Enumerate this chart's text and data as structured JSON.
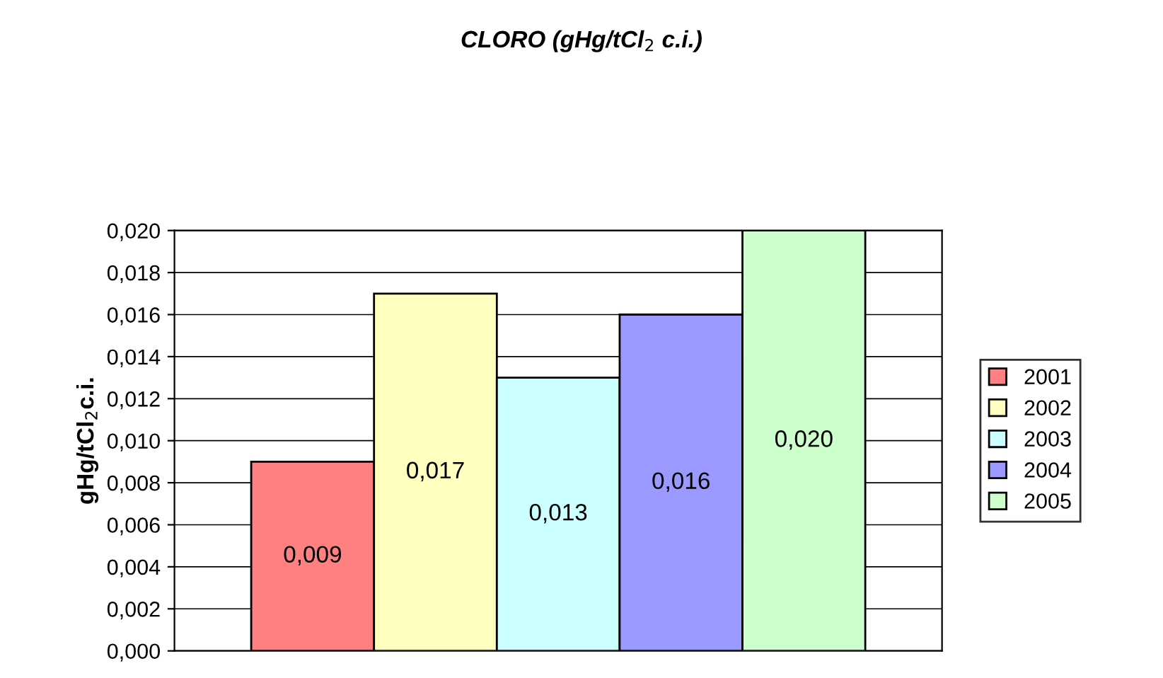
{
  "chart_data": {
    "type": "bar",
    "title": "CLORO (gHg/tCl$_{2}$ c.i.)",
    "ylabel": "gHg/tCl$_{2}$c.i.",
    "categories": [
      null
    ],
    "series": [
      {
        "name": "2001",
        "color": "#ff8080",
        "values": [
          0.009
        ],
        "value_labels": [
          "0,009"
        ]
      },
      {
        "name": "2002",
        "color": "#ffffc0",
        "values": [
          0.017
        ],
        "value_labels": [
          "0,017"
        ]
      },
      {
        "name": "2003",
        "color": "#ccffff",
        "values": [
          0.013
        ],
        "value_labels": [
          "0,013"
        ]
      },
      {
        "name": "2004",
        "color": "#9999ff",
        "values": [
          0.016
        ],
        "value_labels": [
          "0,016"
        ]
      },
      {
        "name": "2005",
        "color": "#ccffcc",
        "values": [
          0.02
        ],
        "value_labels": [
          "0,020"
        ]
      }
    ],
    "ylim": [
      0,
      0.02
    ],
    "yticks": [
      {
        "value": 0,
        "label": "0,000"
      },
      {
        "value": 0.002,
        "label": "0,002"
      },
      {
        "value": 0.004,
        "label": "0,004"
      },
      {
        "value": 0.006,
        "label": "0,006"
      },
      {
        "value": 0.008,
        "label": "0,008"
      },
      {
        "value": 0.01,
        "label": "0,010"
      },
      {
        "value": 0.012,
        "label": "0,012"
      },
      {
        "value": 0.014,
        "label": "0,014"
      },
      {
        "value": 0.016,
        "label": "0,016"
      },
      {
        "value": 0.018,
        "label": "0,018"
      },
      {
        "value": 0.02,
        "label": "0,020"
      }
    ],
    "grid": "y",
    "legend": "right"
  }
}
